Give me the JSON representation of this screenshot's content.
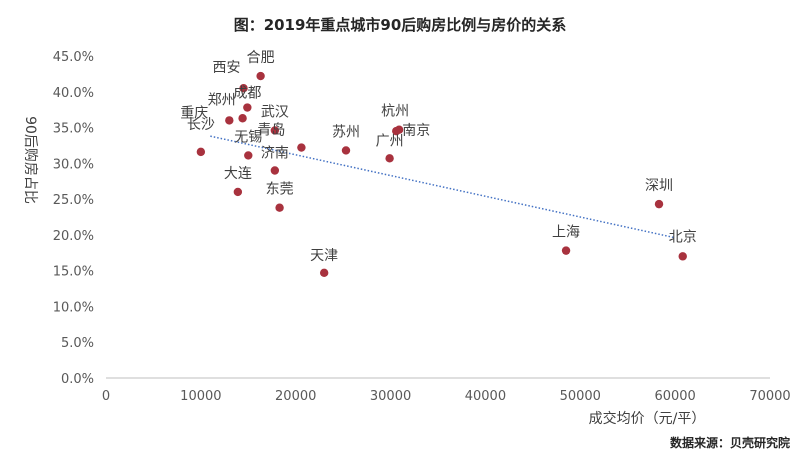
{
  "title": "图：2019年重点城市90后购房比例与房价的关系",
  "source": "数据来源：贝壳研究院",
  "chart_data": {
    "type": "scatter",
    "title": "图：2019年重点城市90后购房比例与房价的关系",
    "xlabel": "成交均价（元/平）",
    "ylabel": "90后购房占比",
    "xlim": [
      0,
      70000
    ],
    "ylim": [
      0,
      45
    ],
    "x_ticks": [
      0,
      10000,
      20000,
      30000,
      40000,
      50000,
      60000,
      70000
    ],
    "x_tick_labels": [
      "0",
      "10000",
      "20000",
      "30000",
      "40000",
      "50000",
      "60000",
      "70000"
    ],
    "y_ticks": [
      0,
      5,
      10,
      15,
      20,
      25,
      30,
      35,
      40,
      45
    ],
    "y_tick_labels": [
      "0.0%",
      "5.0%",
      "10.0%",
      "15.0%",
      "20.0%",
      "25.0%",
      "30.0%",
      "35.0%",
      "40.0%",
      "45.0%"
    ],
    "grid": false,
    "marker_color": "#A8323E",
    "trendline": {
      "style": "dotted",
      "color": "#4472C4",
      "from": [
        11000,
        33.8
      ],
      "to": [
        60000,
        19.6
      ]
    },
    "points": [
      {
        "name": "合肥",
        "x": 16300,
        "y": 42.2
      },
      {
        "name": "西安",
        "x": 14500,
        "y": 40.5
      },
      {
        "name": "成都",
        "x": 14900,
        "y": 37.8
      },
      {
        "name": "郑州",
        "x": 14400,
        "y": 36.3
      },
      {
        "name": "重庆",
        "x": 13000,
        "y": 36.0
      },
      {
        "name": "武汉",
        "x": 17800,
        "y": 34.6
      },
      {
        "name": "杭州",
        "x": 30900,
        "y": 34.7
      },
      {
        "name": "南京",
        "x": 30600,
        "y": 34.5
      },
      {
        "name": "青岛",
        "x": 20600,
        "y": 32.2
      },
      {
        "name": "苏州",
        "x": 25300,
        "y": 31.8
      },
      {
        "name": "长沙",
        "x": 10000,
        "y": 31.6
      },
      {
        "name": "无锡",
        "x": 15000,
        "y": 31.1
      },
      {
        "name": "广州",
        "x": 29900,
        "y": 30.7
      },
      {
        "name": "济南",
        "x": 17800,
        "y": 29.0
      },
      {
        "name": "大连",
        "x": 13900,
        "y": 26.0
      },
      {
        "name": "东莞",
        "x": 18300,
        "y": 23.8
      },
      {
        "name": "深圳",
        "x": 58300,
        "y": 24.3
      },
      {
        "name": "上海",
        "x": 48500,
        "y": 17.8
      },
      {
        "name": "北京",
        "x": 60800,
        "y": 17.0
      },
      {
        "name": "天津",
        "x": 23000,
        "y": 14.7
      }
    ]
  }
}
